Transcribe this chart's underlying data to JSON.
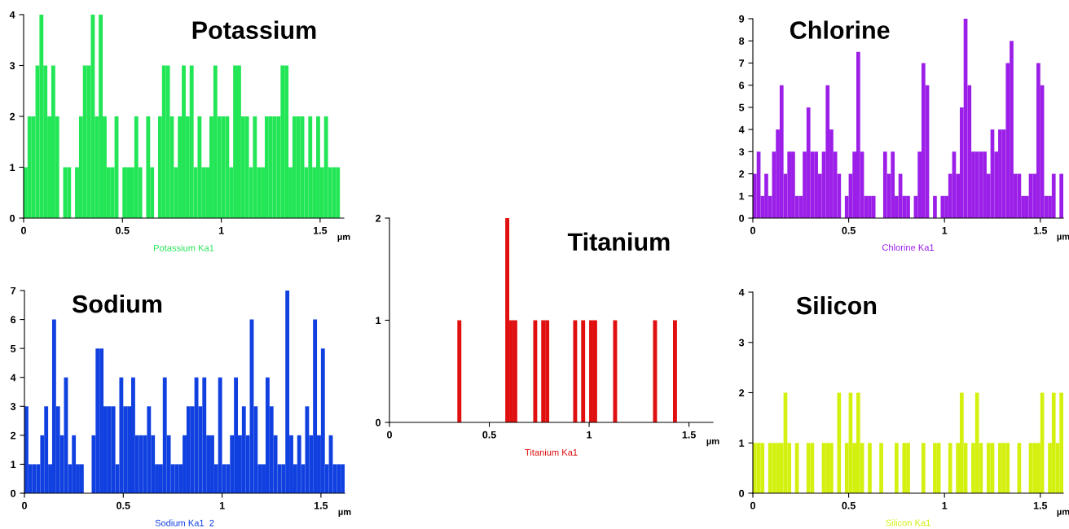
{
  "chart_data": [
    {
      "type": "histogram",
      "title": "Potassium",
      "xlabel": "µm",
      "xlim": [
        0,
        1.62
      ],
      "xticks": [
        0,
        0.5,
        1,
        1.5
      ],
      "ylim": [
        0,
        4
      ],
      "yticks": [
        0,
        1,
        2,
        3,
        4
      ],
      "bins": [
        0,
        0.02,
        0.04,
        0.06,
        0.08,
        0.1,
        0.12,
        0.14,
        0.16,
        0.18,
        0.2,
        0.22,
        0.24,
        0.26,
        0.28,
        0.3,
        0.32,
        0.34,
        0.36,
        0.38,
        0.4,
        0.42,
        0.44,
        0.46,
        0.48,
        0.5,
        0.52,
        0.54,
        0.56,
        0.58,
        0.6,
        0.62,
        0.64,
        0.66,
        0.68,
        0.7,
        0.72,
        0.74,
        0.76,
        0.78,
        0.8,
        0.82,
        0.84,
        0.86,
        0.88,
        0.9,
        0.92,
        0.94,
        0.96,
        0.98,
        1,
        1.02,
        1.04,
        1.06,
        1.08,
        1.1,
        1.12,
        1.14,
        1.16,
        1.18,
        1.2,
        1.22,
        1.24,
        1.26,
        1.28,
        1.3,
        1.32,
        1.34,
        1.36,
        1.38,
        1.4,
        1.42,
        1.44,
        1.46,
        1.48,
        1.5,
        1.52,
        1.54,
        1.56,
        1.58,
        1.6,
        1.62
      ],
      "series": [
        {
          "name": "Potassium Ka1",
          "color": "#22e655",
          "values": [
            1,
            2,
            2,
            3,
            4,
            3,
            2,
            3,
            2,
            0,
            1,
            1,
            0,
            1,
            2,
            3,
            3,
            4,
            2,
            4,
            2,
            1,
            1,
            2,
            0,
            1,
            1,
            1,
            2,
            1,
            0,
            2,
            1,
            0,
            2,
            3,
            3,
            2,
            1,
            2,
            3,
            2,
            3,
            1,
            2,
            1,
            1,
            2,
            3,
            2,
            2,
            2,
            1,
            3,
            3,
            2,
            2,
            1,
            2,
            1,
            1,
            2,
            2,
            2,
            2,
            3,
            3,
            1,
            2,
            2,
            2,
            1,
            2,
            1,
            2,
            1,
            2,
            1,
            1,
            1,
            0
          ]
        }
      ]
    },
    {
      "type": "histogram",
      "title": "Sodium",
      "xlabel": "µm",
      "xlim": [
        0,
        1.62
      ],
      "xticks": [
        0,
        0.5,
        1,
        1.5
      ],
      "ylim": [
        0,
        7
      ],
      "yticks": [
        0,
        1,
        2,
        3,
        4,
        5,
        6,
        7
      ],
      "bins": [
        0,
        0.02,
        0.04,
        0.06,
        0.08,
        0.1,
        0.12,
        0.14,
        0.16,
        0.18,
        0.2,
        0.22,
        0.24,
        0.26,
        0.28,
        0.3,
        0.32,
        0.34,
        0.36,
        0.38,
        0.4,
        0.42,
        0.44,
        0.46,
        0.48,
        0.5,
        0.52,
        0.54,
        0.56,
        0.58,
        0.6,
        0.62,
        0.64,
        0.66,
        0.68,
        0.7,
        0.72,
        0.74,
        0.76,
        0.78,
        0.8,
        0.82,
        0.84,
        0.86,
        0.88,
        0.9,
        0.92,
        0.94,
        0.96,
        0.98,
        1,
        1.02,
        1.04,
        1.06,
        1.08,
        1.1,
        1.12,
        1.14,
        1.16,
        1.18,
        1.2,
        1.22,
        1.24,
        1.26,
        1.28,
        1.3,
        1.32,
        1.34,
        1.36,
        1.38,
        1.4,
        1.42,
        1.44,
        1.46,
        1.48,
        1.5,
        1.52,
        1.54,
        1.56,
        1.58,
        1.6,
        1.62
      ],
      "series": [
        {
          "name": "Sodium Ka1  2",
          "color": "#1040e0",
          "values": [
            3,
            1,
            1,
            1,
            2,
            3,
            1,
            6,
            3,
            2,
            4,
            1,
            2,
            1,
            1,
            0,
            0,
            2,
            5,
            5,
            3,
            3,
            3,
            1,
            4,
            3,
            3,
            4,
            2,
            2,
            2,
            3,
            2,
            1,
            1,
            4,
            2,
            1,
            1,
            1,
            2,
            3,
            3,
            4,
            3,
            4,
            2,
            2,
            1,
            4,
            1,
            1,
            2,
            4,
            2,
            3,
            2,
            6,
            3,
            1,
            1,
            4,
            3,
            2,
            1,
            1,
            7,
            2,
            1,
            2,
            1,
            3,
            2,
            6,
            2,
            5,
            1,
            2,
            1,
            1,
            1
          ]
        }
      ]
    },
    {
      "type": "histogram",
      "title": "Titanium",
      "xlabel": "µm",
      "xlim": [
        0,
        1.62
      ],
      "xticks": [
        0,
        0.5,
        1,
        1.5
      ],
      "ylim": [
        0,
        2
      ],
      "yticks": [
        0,
        1,
        2
      ],
      "bins": [
        0,
        0.02,
        0.04,
        0.06,
        0.08,
        0.1,
        0.12,
        0.14,
        0.16,
        0.18,
        0.2,
        0.22,
        0.24,
        0.26,
        0.28,
        0.3,
        0.32,
        0.34,
        0.36,
        0.38,
        0.4,
        0.42,
        0.44,
        0.46,
        0.48,
        0.5,
        0.52,
        0.54,
        0.56,
        0.58,
        0.6,
        0.62,
        0.64,
        0.66,
        0.68,
        0.7,
        0.72,
        0.74,
        0.76,
        0.78,
        0.8,
        0.82,
        0.84,
        0.86,
        0.88,
        0.9,
        0.92,
        0.94,
        0.96,
        0.98,
        1,
        1.02,
        1.04,
        1.06,
        1.08,
        1.1,
        1.12,
        1.14,
        1.16,
        1.18,
        1.2,
        1.22,
        1.24,
        1.26,
        1.28,
        1.3,
        1.32,
        1.34,
        1.36,
        1.38,
        1.4,
        1.42,
        1.44,
        1.46,
        1.48,
        1.5,
        1.52,
        1.54,
        1.56,
        1.58,
        1.6,
        1.62
      ],
      "series": [
        {
          "name": "Titanium Ka1",
          "color": "#e01010",
          "values": [
            0,
            0,
            0,
            0,
            0,
            0,
            0,
            0,
            0,
            0,
            0,
            0,
            0,
            0,
            0,
            0,
            0,
            1,
            0,
            0,
            0,
            0,
            0,
            0,
            0,
            0,
            0,
            0,
            0,
            2,
            1,
            1,
            0,
            0,
            0,
            0,
            1,
            0,
            1,
            1,
            0,
            0,
            0,
            0,
            0,
            0,
            1,
            0,
            1,
            0,
            1,
            1,
            0,
            0,
            0,
            0,
            1,
            0,
            0,
            0,
            0,
            0,
            0,
            0,
            0,
            0,
            1,
            0,
            0,
            0,
            0,
            1,
            0,
            0,
            0,
            0,
            0,
            0,
            0,
            0,
            0
          ]
        }
      ]
    },
    {
      "type": "histogram",
      "title": "Chlorine",
      "xlabel": "µm",
      "xlim": [
        0,
        1.62
      ],
      "xticks": [
        0,
        0.5,
        1,
        1.5
      ],
      "ylim": [
        0,
        9
      ],
      "yticks": [
        0,
        1,
        2,
        3,
        4,
        5,
        6,
        7,
        8,
        9
      ],
      "bins": [
        0,
        0.02,
        0.04,
        0.06,
        0.08,
        0.1,
        0.12,
        0.14,
        0.16,
        0.18,
        0.2,
        0.22,
        0.24,
        0.26,
        0.28,
        0.3,
        0.32,
        0.34,
        0.36,
        0.38,
        0.4,
        0.42,
        0.44,
        0.46,
        0.48,
        0.5,
        0.52,
        0.54,
        0.56,
        0.58,
        0.6,
        0.62,
        0.64,
        0.66,
        0.68,
        0.7,
        0.72,
        0.74,
        0.76,
        0.78,
        0.8,
        0.82,
        0.84,
        0.86,
        0.88,
        0.9,
        0.92,
        0.94,
        0.96,
        0.98,
        1,
        1.02,
        1.04,
        1.06,
        1.08,
        1.1,
        1.12,
        1.14,
        1.16,
        1.18,
        1.2,
        1.22,
        1.24,
        1.26,
        1.28,
        1.3,
        1.32,
        1.34,
        1.36,
        1.38,
        1.4,
        1.42,
        1.44,
        1.46,
        1.48,
        1.5,
        1.52,
        1.54,
        1.56,
        1.58,
        1.6,
        1.62
      ],
      "series": [
        {
          "name": "Chlorine Ka1",
          "color": "#9b1fe8",
          "values": [
            2,
            3,
            1,
            2,
            1,
            3,
            4,
            6,
            2,
            3,
            3,
            1,
            1,
            3,
            5,
            3,
            3,
            2,
            3,
            6,
            4,
            3,
            2,
            0,
            1,
            2,
            3,
            7.5,
            3,
            1,
            1,
            1,
            0,
            0,
            3,
            2,
            3,
            1,
            2,
            1,
            1,
            0,
            1,
            3,
            7,
            6,
            0,
            1,
            0,
            1,
            1,
            2,
            3,
            2,
            5,
            9,
            6,
            3,
            3,
            3,
            3,
            2,
            4,
            3,
            4,
            4,
            7,
            8,
            2,
            2,
            1,
            1,
            2,
            2,
            7,
            6,
            1,
            1,
            2,
            0,
            2
          ]
        }
      ]
    },
    {
      "type": "histogram",
      "title": "Silicon",
      "xlabel": "µm",
      "xlim": [
        0,
        1.62
      ],
      "xticks": [
        0,
        0.5,
        1,
        1.5
      ],
      "ylim": [
        0,
        4
      ],
      "yticks": [
        0,
        1,
        2,
        3,
        4
      ],
      "bins": [
        0,
        0.02,
        0.04,
        0.06,
        0.08,
        0.1,
        0.12,
        0.14,
        0.16,
        0.18,
        0.2,
        0.22,
        0.24,
        0.26,
        0.28,
        0.3,
        0.32,
        0.34,
        0.36,
        0.38,
        0.4,
        0.42,
        0.44,
        0.46,
        0.48,
        0.5,
        0.52,
        0.54,
        0.56,
        0.58,
        0.6,
        0.62,
        0.64,
        0.66,
        0.68,
        0.7,
        0.72,
        0.74,
        0.76,
        0.78,
        0.8,
        0.82,
        0.84,
        0.86,
        0.88,
        0.9,
        0.92,
        0.94,
        0.96,
        0.98,
        1,
        1.02,
        1.04,
        1.06,
        1.08,
        1.1,
        1.12,
        1.14,
        1.16,
        1.18,
        1.2,
        1.22,
        1.24,
        1.26,
        1.28,
        1.3,
        1.32,
        1.34,
        1.36,
        1.38,
        1.4,
        1.42,
        1.44,
        1.46,
        1.48,
        1.5,
        1.52,
        1.54,
        1.56,
        1.58,
        1.6,
        1.62
      ],
      "series": [
        {
          "name": "Silicon Ka1",
          "color": "#d4f00e",
          "values": [
            1,
            1,
            1,
            0,
            1,
            1,
            1,
            1,
            2,
            1,
            0,
            1,
            0,
            0,
            1,
            1,
            0,
            0,
            1,
            1,
            1,
            0,
            2,
            0,
            1,
            2,
            1,
            2,
            1,
            0,
            1,
            0,
            0,
            1,
            0,
            0,
            0,
            1,
            0,
            1,
            1,
            0,
            0,
            0,
            1,
            0,
            0,
            1,
            1,
            0,
            0,
            1,
            0,
            1,
            2,
            1,
            0,
            1,
            2,
            1,
            0,
            1,
            1,
            0,
            1,
            1,
            1,
            0,
            0,
            1,
            0,
            0,
            1,
            1,
            1,
            2,
            0,
            1,
            2,
            1,
            2
          ]
        }
      ]
    }
  ]
}
